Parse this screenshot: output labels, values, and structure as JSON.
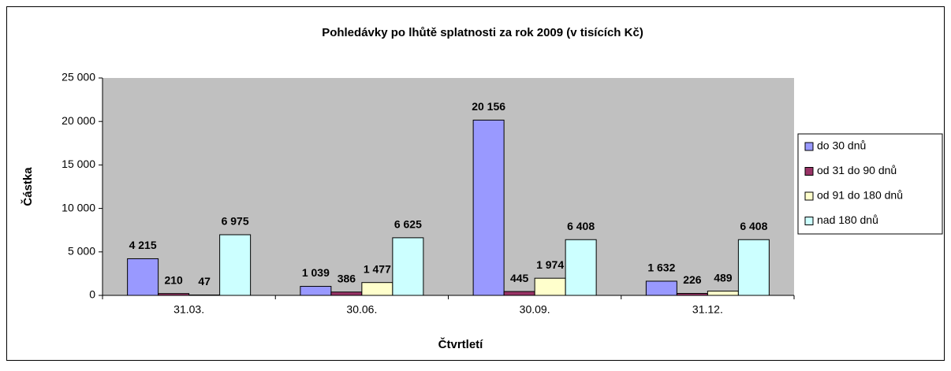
{
  "chart_data": {
    "type": "bar",
    "title": "Pohledávky po lhůtě splatnosti za rok 2009 (v tisících Kč)",
    "x_label": "Čtvrtletí",
    "y_label": "Částka",
    "categories": [
      "31.03.",
      "30.06.",
      "30.09.",
      "31.12."
    ],
    "series": [
      {
        "name": "do 30 dnů",
        "color": "#9999ff",
        "values": [
          4215,
          1039,
          20156,
          1632
        ],
        "value_labels": [
          "4 215",
          "1 039",
          "20 156",
          "1 632"
        ]
      },
      {
        "name": "od 31 do 90 dnů",
        "color": "#993366",
        "values": [
          210,
          386,
          445,
          226
        ],
        "value_labels": [
          "210",
          "386",
          "445",
          "226"
        ]
      },
      {
        "name": "od 91 do 180 dnů",
        "color": "#ffffcc",
        "values": [
          47,
          1477,
          1974,
          489
        ],
        "value_labels": [
          "47",
          "1 477",
          "1 974",
          "489"
        ]
      },
      {
        "name": "nad 180 dnů",
        "color": "#ccffff",
        "values": [
          6975,
          6625,
          6408,
          6408
        ],
        "value_labels": [
          "6 975",
          "6 625",
          "6 408",
          "6 408"
        ]
      }
    ],
    "ylim": [
      0,
      25000
    ],
    "yticks": [
      0,
      {
        "value": 5000,
        "label": "5 000"
      },
      {
        "value": 10000,
        "label": "10 000"
      },
      {
        "value": 15000,
        "label": "15 000"
      },
      {
        "value": 20000,
        "label": "20 000"
      },
      {
        "value": 25000,
        "label": "25 000"
      }
    ],
    "plot_background": "#c0c0c0",
    "legend": "right"
  }
}
